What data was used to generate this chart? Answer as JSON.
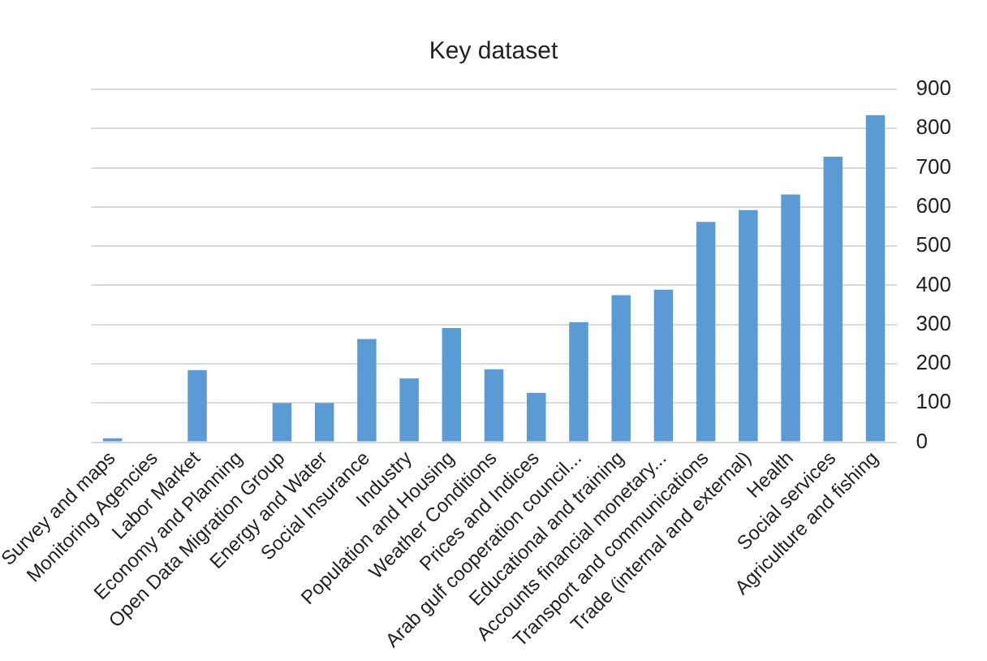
{
  "chart_data": {
    "type": "bar",
    "title": "Key dataset",
    "categories": [
      "Survey and maps",
      "Monitoring Agencies",
      "Labor Market",
      "Economy and Planning",
      "Open Data Migration Group",
      "Energy and Water",
      "Social Insurance",
      "Industry",
      "Population and Housing",
      "Weather Conditions",
      "Prices and Indices",
      "Arab gulf cooperation council...",
      "Educational and training",
      "Accounts financial monetary...",
      "Transport and communications",
      "Trade (internal and external)",
      "Health",
      "Social services",
      "Agriculture and fishing"
    ],
    "values": [
      10,
      0,
      184,
      0,
      100,
      100,
      263,
      163,
      291,
      186,
      126,
      306,
      375,
      389,
      562,
      592,
      632,
      728,
      834
    ],
    "color": "#5b9bd5",
    "ylim": [
      0,
      900
    ],
    "yticks": [
      0,
      100,
      200,
      300,
      400,
      500,
      600,
      700,
      800,
      900
    ],
    "grid": "y",
    "legend": false
  }
}
